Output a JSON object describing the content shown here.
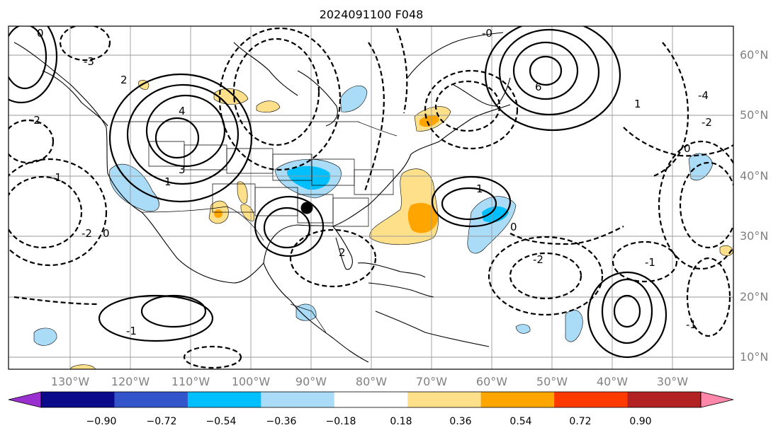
{
  "title": "2024091100 F048",
  "lat_labels": [
    "60°N",
    "50°N",
    "40°N",
    "30°N",
    "20°N",
    "10°N"
  ],
  "lon_labels": [
    "130°W",
    "120°W",
    "110°W",
    "100°W",
    "90°W",
    "80°W",
    "70°W",
    "60°W",
    "50°W",
    "40°W",
    "30°W"
  ],
  "colorbar": {
    "ticks": [
      "−0.90",
      "−0.72",
      "−0.54",
      "−0.36",
      "−0.18",
      "0.18",
      "0.36",
      "0.54",
      "0.72",
      "0.90"
    ],
    "colors": [
      "#9b30d0",
      "#0a0a8a",
      "#3355cc",
      "#00bfff",
      "#aadcf8",
      "#ffffff",
      "#ffe08a",
      "#ffa500",
      "#ff3a00",
      "#b22222",
      "#ff88aa"
    ]
  },
  "contour_labels": [
    "0",
    "-2",
    "2",
    "4",
    "-3",
    "-1",
    "1",
    "0",
    "-2",
    "3",
    "6",
    "-0",
    "-4",
    "1",
    "0",
    "-2",
    "0",
    "1",
    "-1",
    "-2",
    "-1",
    "2",
    "-1"
  ],
  "colors": {
    "gridline": "#9a9a9a",
    "label": "#808080",
    "positive_fill_light": "#ffe08a",
    "positive_fill": "#ffa500",
    "negative_fill_light": "#aadcf8",
    "negative_fill": "#00bfff"
  }
}
